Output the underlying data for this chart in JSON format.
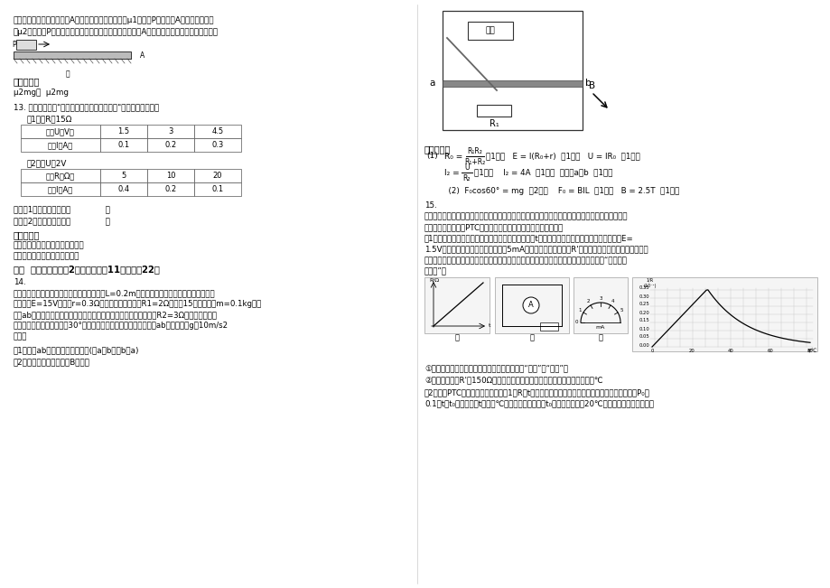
{
  "bg_color": "#ffffff",
  "text_color": "#000000",
  "page_width": 9.2,
  "page_height": 6.51,
  "left_column": {
    "intro_text_1": "直处于静止状态。若长木板A与地面间的动摩擦因数为μ1，木块P与长木板A间的动摩擦因数",
    "intro_text_2": "为μ2，则木块P所受到长木板的摩擦力大小为＿＿，长木板A所受到地面的摩擦力大小为＿＿。",
    "ref_answer_label": "参考答案：",
    "ref_answer_text": "μ2mg；  μ2mg",
    "q13_text": "13. 下面的表格是\"研究电流跟电压、电阻关系\"的实验数据记录：",
    "table1_label": "表1电阻R＝15Ω",
    "table1_headers": [
      "电压U（V）",
      "1.5",
      "3",
      "4.5"
    ],
    "table1_row2": [
      "电流I（A）",
      "0.1",
      "0.2",
      "0.3"
    ],
    "table2_label": "表2电压U＝2V",
    "table2_headers": [
      "电阻R（Ω）",
      "5",
      "10",
      "20"
    ],
    "table2_row2": [
      "电流I（A）",
      "0.4",
      "0.2",
      "0.1"
    ],
    "analysis1": "分析表1数据，可得出结论              ：",
    "analysis2": "分析表2数据，可得出结论              。",
    "ref_answer2_label": "参考答案：",
    "ref_answer2_line1": "电阻一定时，电流和电压成正比。",
    "ref_answer2_line2": "电压一定时，电流和电阻成反比",
    "section3_label": "三、  实验题：本题共2小题，每小题11分，共计22分",
    "q14_label": "14.",
    "q14_lines": [
      "两光滑金属导轨竖直平行放置，导轨间的宽度L=0.2m，且导轨电阻不计，其上端接一直流电",
      "源电动势E=15V，内阻r=0.3Ω，下端接一定值电阻R1=2Ω，如图15所示，质量m=0.1kg的金",
      "属棒ab水平地搭在导轨的外侧，并与导轨接触良好，接入电路的电阻R2=3Ω。为了使金属棒",
      "不滑动，需加一与竖直面成30°向里斜向下的勾强磁场（磁场方向与ab垂直）。（g取10m/s2",
      "）求："
    ],
    "q14_sub1": "（1）通过ab的电流的大小和方向(由a至b或由b至a)",
    "q14_sub2": "（2）匀强磁场磁感应强度B的大小"
  },
  "right_column": {
    "ref_answer3_label": "参考答案：",
    "formula1a": "(1)   R₀ =",
    "formula1b": "R₁R₂",
    "formula1c": "R₁+R₂",
    "formula1d": "（1分）    E = I(R₀+r)  （1分）    U = IR₀  （1分）",
    "formula2a": "      I₂ =",
    "formula2b": "U",
    "formula2c": "R₂",
    "formula2d": "（1分）      I₂ = 4A  （1分）  方向由a至b  （1分）",
    "formula3": "      (2)  F₀cos60° = mg  （2分）    F₀ = BIL  （1分）   B = 2.5T  （1分）",
    "q15_label": "15.",
    "q15_lines": [
      "影响物质材料电阻率的因素很多，一般金属材料的电阻率随温度升高而增大，半导体材料的电阻率则",
      "随稳定升高而减小，PTC元件由于材料的原因有特殊的导电特性。"
    ],
    "q15_sub1_lines": [
      "（1）图（甲）是某种金属材料制成的电阻随摄氏温度t变化的图像，若用该电阻与电池（电动势E=",
      "1.5V，内阻不计）、电流表（量程为5mA、内阻不计）、电阻箱R'串联起来，连接成图（乙）所示电",
      "路，用该电阻做测温探头，把电流表的电流刻度改为相应的温度刻度，就得到一个简单的“金属电阻",
      "温度计”。"
    ],
    "q15_fill1": "①电流刻度较大处对应的温度刻度＿＿＿＿（填“较大”或“较小”）",
    "q15_fill2": "②若电阻箱阻值R'＝150Ω，则图（丙）中空格处对应的温度数值为＿＿＿＿℃",
    "q15_sub2_lines": [
      "（2）一由PTC元件做成的加热器，其1／R－t的关系如图（丁）所示，已知它向周围散热的功率为P₀＝",
      "0.1（t－t₀）瓦，其中t（单位℃）为加热器的温度，t₀为室温（本题取20℃）。当加热器产生的热功"
    ]
  }
}
